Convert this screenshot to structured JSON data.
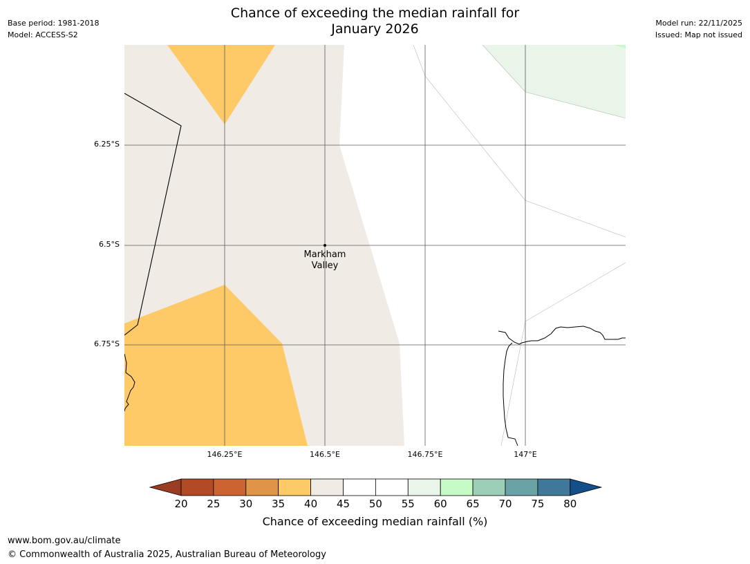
{
  "header": {
    "title_line1": "Chance of exceeding the median rainfall for",
    "title_line2": "January 2026",
    "base_period": "Base period: 1981-2018",
    "model": "Model: ACCESS-S2",
    "model_run": "Model run: 22/11/2025",
    "issued": "Issued: Map not issued"
  },
  "map": {
    "lat_labels": [
      "6.25°S",
      "6.5°S",
      "6.75°S"
    ],
    "lon_labels": [
      "146.25°E",
      "146.5°E",
      "146.75°E",
      "147°E"
    ],
    "place_name_line1": "Markham",
    "place_name_line2": "Valley",
    "category_colors": {
      "35-40": "#fdca67",
      "40-45": "#f0ebe5",
      "50-55": "#ffffff",
      "55-60": "#eaf5ea",
      "60-65": "#c6fac6"
    }
  },
  "colorbar": {
    "ticks": [
      "20",
      "25",
      "30",
      "35",
      "40",
      "45",
      "50",
      "55",
      "60",
      "65",
      "70",
      "75",
      "80"
    ],
    "colors": [
      "#9a3d22",
      "#b24a25",
      "#cc6432",
      "#e09448",
      "#fdca67",
      "#f0ebe5",
      "#ffffff",
      "#ffffff",
      "#eaf5ea",
      "#c6fac6",
      "#9ccfb8",
      "#6aa3a5",
      "#3f7898",
      "#154f8a"
    ],
    "label": "Chance of exceeding median rainfall (%)"
  },
  "footer": {
    "url": "www.bom.gov.au/climate",
    "copyright": "© Commonwealth of Australia 2025, Australian Bureau of Meteorology"
  }
}
